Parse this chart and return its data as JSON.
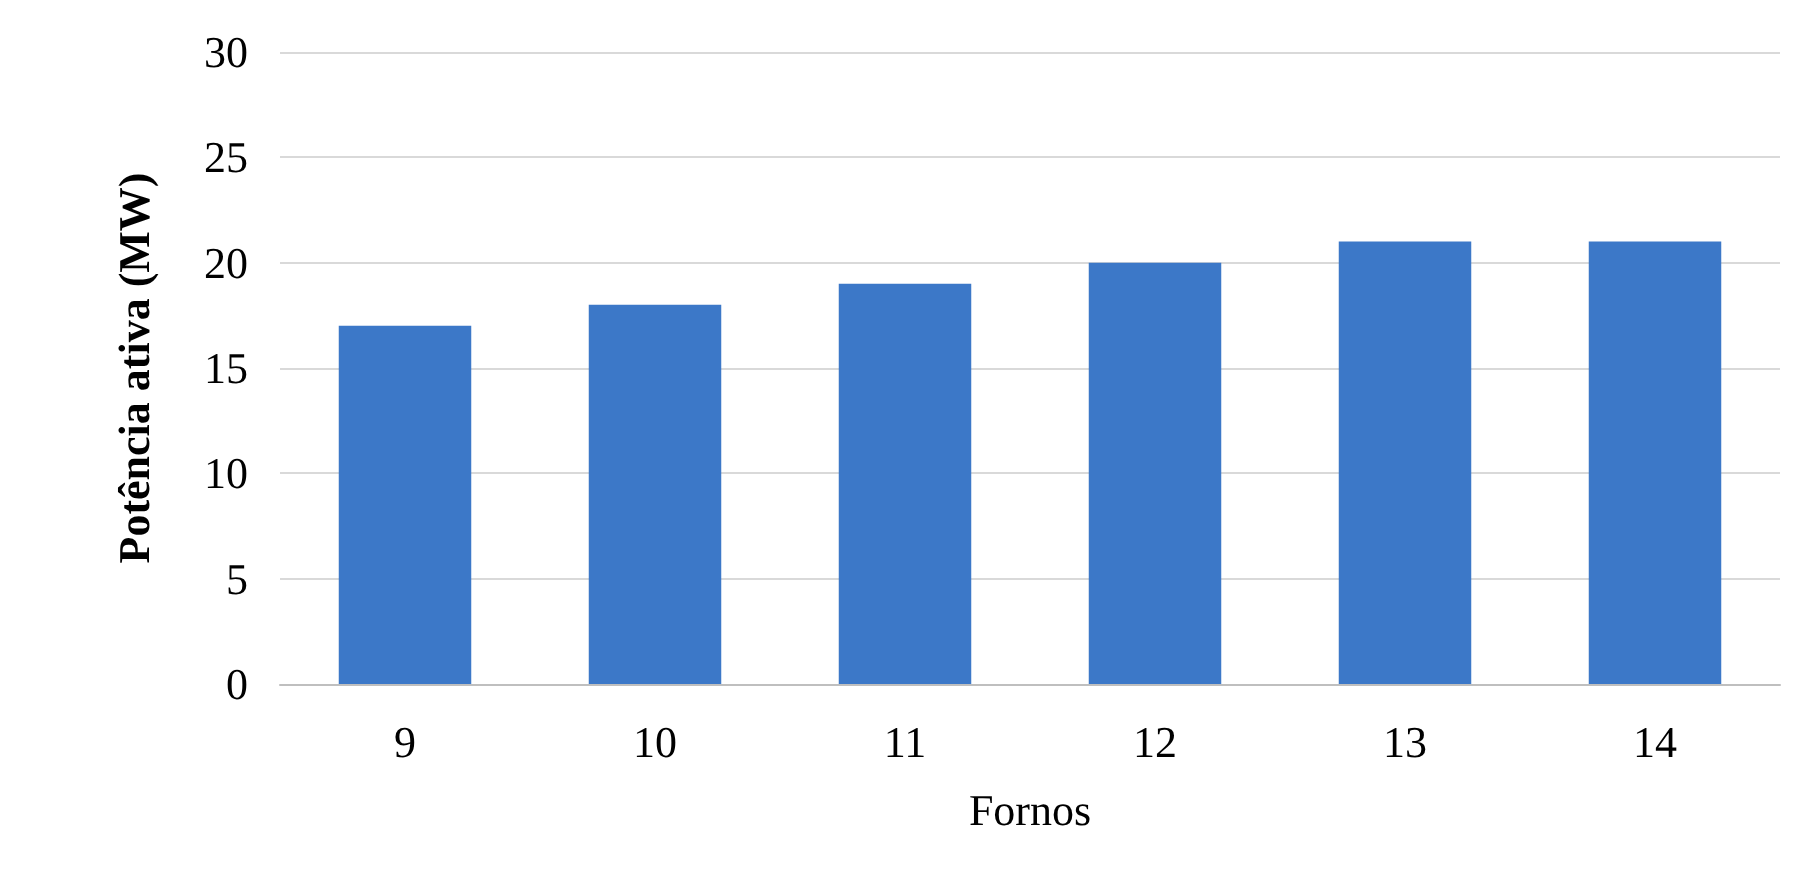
{
  "chart_data": {
    "type": "bar",
    "xlabel": "Fornos",
    "ylabel": "Potência ativa (MW)",
    "categories": [
      "9",
      "10",
      "11",
      "12",
      "13",
      "14"
    ],
    "values": [
      17,
      18,
      19,
      20,
      21,
      21
    ],
    "color": "#3c78c8",
    "ylim": [
      0,
      30
    ],
    "yticks": [
      0,
      5,
      10,
      15,
      20,
      25,
      30
    ],
    "grid": "y"
  }
}
